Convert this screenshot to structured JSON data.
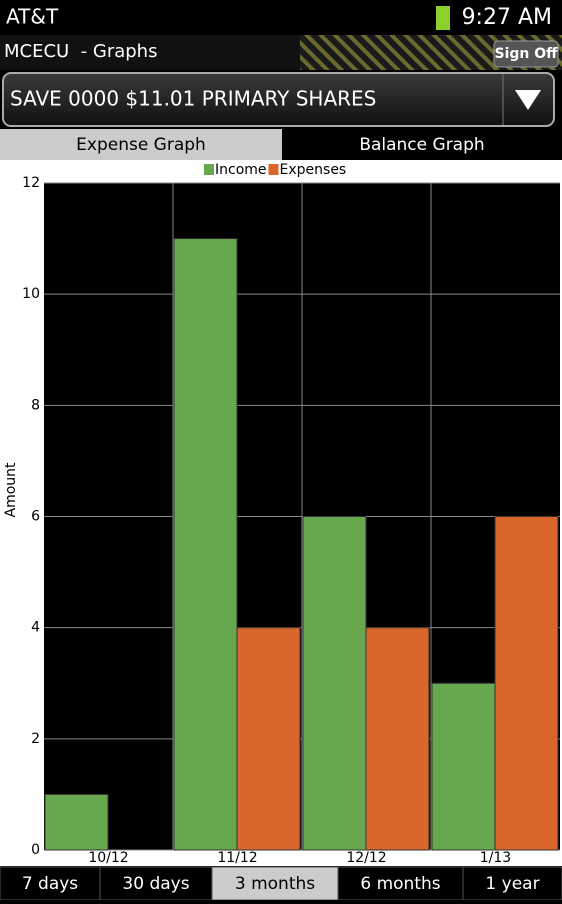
{
  "status": {
    "carrier": "AT&T",
    "time": "9:27 AM"
  },
  "header": {
    "title": "MCECU  - Graphs",
    "button": "Sign Off"
  },
  "account": {
    "selected": "SAVE 0000 $11.01 PRIMARY SHARES"
  },
  "tabs": [
    "Expense Graph",
    "Balance Graph"
  ],
  "chart_data": {
    "type": "bar",
    "y_label": "Amount",
    "categories": [
      "10/12",
      "11/12",
      "12/12",
      "1/13"
    ],
    "series": [
      {
        "name": "Income",
        "color": "#67a84f",
        "values": [
          1,
          11,
          6,
          3
        ]
      },
      {
        "name": "Expenses",
        "color": "#d9662a",
        "values": [
          0,
          4,
          4,
          6
        ]
      }
    ],
    "ylim": [
      0,
      12
    ],
    "yticks": [
      0,
      2,
      4,
      6,
      8,
      10,
      12
    ],
    "grid": true,
    "legend": "top"
  },
  "periods": [
    "7 days",
    "30 days",
    "3 months",
    "6 months",
    "1 year"
  ]
}
